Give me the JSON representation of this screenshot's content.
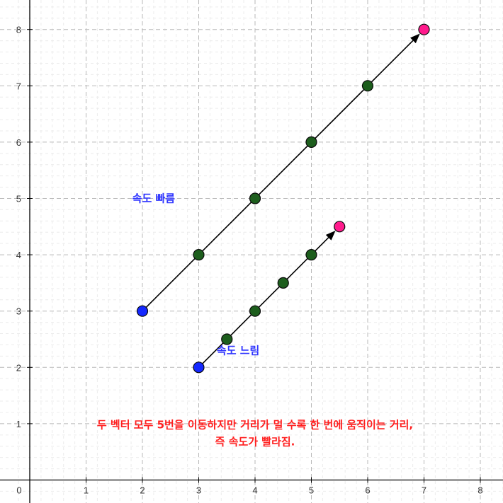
{
  "chart_data": {
    "type": "scatter",
    "xlim": [
      0,
      8.4
    ],
    "ylim": [
      0,
      8.4
    ],
    "x_ticks": [
      0,
      1,
      2,
      3,
      4,
      5,
      6,
      7,
      8
    ],
    "y_ticks": [
      1,
      2,
      3,
      4,
      5,
      6,
      7,
      8
    ],
    "grid": true,
    "series": [
      {
        "start": [
          2,
          3
        ],
        "end": [
          7,
          8
        ],
        "steps": [
          [
            3,
            4
          ],
          [
            4,
            5
          ],
          [
            5,
            6
          ],
          [
            6,
            7
          ]
        ],
        "label": "속도 빠름",
        "label_at": [
          2.2,
          5.0
        ]
      },
      {
        "start": [
          3,
          2
        ],
        "end": [
          5.5,
          4.5
        ],
        "steps": [
          [
            3.5,
            2.5
          ],
          [
            4,
            3
          ],
          [
            4.5,
            3.5
          ],
          [
            5,
            4
          ]
        ],
        "label": "속도 느림",
        "label_at": [
          3.7,
          2.3
        ]
      }
    ],
    "annotation": {
      "line1": "두 벡터 모두 5번을 이동하지만  거리가 멀 수록 한 번에 움직이는 거리,",
      "line2": "즉 속도가 빨라짐.",
      "at": [
        4.0,
        0.98
      ]
    },
    "colors": {
      "start_point": "#1428ff",
      "end_point": "#ff1a8c",
      "step_point": "#1d5e1d",
      "vector": "#000000",
      "label_blue": "#2f35ff",
      "annotation_red": "#ff1f1f"
    }
  }
}
